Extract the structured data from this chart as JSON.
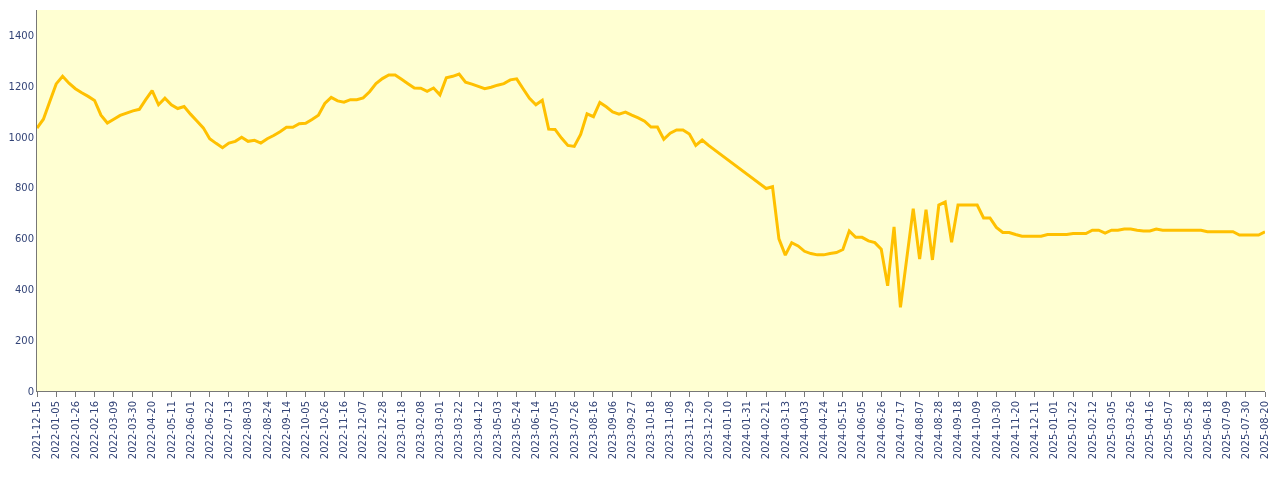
{
  "chart_data": {
    "type": "line",
    "x": [
      "2021-12-15",
      "2021-12-22",
      "2021-12-29",
      "2022-01-05",
      "2022-01-12",
      "2022-01-19",
      "2022-01-26",
      "2022-02-02",
      "2022-02-09",
      "2022-02-16",
      "2022-02-23",
      "2022-03-02",
      "2022-03-09",
      "2022-03-16",
      "2022-03-23",
      "2022-03-30",
      "2022-04-06",
      "2022-04-13",
      "2022-04-20",
      "2022-04-27",
      "2022-05-04",
      "2022-05-11",
      "2022-05-18",
      "2022-05-25",
      "2022-06-01",
      "2022-06-08",
      "2022-06-15",
      "2022-06-22",
      "2022-06-29",
      "2022-07-06",
      "2022-07-13",
      "2022-07-20",
      "2022-07-27",
      "2022-08-03",
      "2022-08-10",
      "2022-08-17",
      "2022-08-24",
      "2022-08-31",
      "2022-09-07",
      "2022-09-14",
      "2022-09-21",
      "2022-09-28",
      "2022-10-05",
      "2022-10-12",
      "2022-10-19",
      "2022-10-26",
      "2022-11-02",
      "2022-11-09",
      "2022-11-16",
      "2022-11-23",
      "2022-11-30",
      "2022-12-07",
      "2022-12-14",
      "2022-12-21",
      "2022-12-28",
      "2023-01-04",
      "2023-01-11",
      "2023-01-18",
      "2023-01-25",
      "2023-02-01",
      "2023-02-08",
      "2023-02-15",
      "2023-02-22",
      "2023-03-01",
      "2023-03-08",
      "2023-03-15",
      "2023-03-22",
      "2023-03-29",
      "2023-04-05",
      "2023-04-12",
      "2023-04-19",
      "2023-04-26",
      "2023-05-03",
      "2023-05-10",
      "2023-05-17",
      "2023-05-24",
      "2023-05-31",
      "2023-06-07",
      "2023-06-14",
      "2023-06-21",
      "2023-06-28",
      "2023-07-05",
      "2023-07-12",
      "2023-07-19",
      "2023-07-26",
      "2023-08-02",
      "2023-08-09",
      "2023-08-16",
      "2023-08-23",
      "2023-08-30",
      "2023-09-06",
      "2023-09-13",
      "2023-09-20",
      "2023-09-27",
      "2023-10-04",
      "2023-10-11",
      "2023-10-18",
      "2023-10-25",
      "2023-11-01",
      "2023-11-08",
      "2023-11-15",
      "2023-11-22",
      "2023-11-29",
      "2023-12-06",
      "2023-12-13",
      "2023-12-20",
      "2024-02-21",
      "2024-02-28",
      "2024-03-06",
      "2024-03-13",
      "2024-03-20",
      "2024-03-27",
      "2024-04-03",
      "2024-04-10",
      "2024-04-17",
      "2024-04-24",
      "2024-05-01",
      "2024-05-08",
      "2024-05-15",
      "2024-05-22",
      "2024-05-29",
      "2024-06-05",
      "2024-06-12",
      "2024-06-19",
      "2024-06-26",
      "2024-07-03",
      "2024-07-10",
      "2024-07-17",
      "2024-07-24",
      "2024-07-31",
      "2024-08-07",
      "2024-08-14",
      "2024-08-21",
      "2024-08-28",
      "2024-09-04",
      "2024-09-11",
      "2024-09-18",
      "2024-09-25",
      "2024-10-02",
      "2024-10-09",
      "2024-10-16",
      "2024-10-23",
      "2024-10-30",
      "2024-11-06",
      "2024-11-13",
      "2024-11-20",
      "2024-11-27",
      "2024-12-04",
      "2024-12-11",
      "2024-12-18",
      "2024-12-25",
      "2025-01-01",
      "2025-01-08",
      "2025-01-15",
      "2025-01-22",
      "2025-01-29",
      "2025-02-05",
      "2025-02-12",
      "2025-02-19",
      "2025-02-26",
      "2025-03-05",
      "2025-03-12",
      "2025-03-19",
      "2025-03-26",
      "2025-04-02",
      "2025-04-09",
      "2025-04-16",
      "2025-04-23",
      "2025-04-30",
      "2025-05-07",
      "2025-05-14",
      "2025-05-21",
      "2025-05-28",
      "2025-06-04",
      "2025-06-11",
      "2025-06-18",
      "2025-06-25",
      "2025-07-02",
      "2025-07-09",
      "2025-07-16",
      "2025-07-23",
      "2025-07-30",
      "2025-08-06",
      "2025-08-13",
      "2025-08-20"
    ],
    "series": [
      {
        "color": "#ffc000",
        "values": [
          1035,
          1070,
          1140,
          1209,
          1239,
          1212,
          1190,
          1174,
          1160,
          1144,
          1086,
          1055,
          1070,
          1085,
          1094,
          1103,
          1109,
          1147,
          1183,
          1127,
          1153,
          1127,
          1112,
          1120,
          1090,
          1063,
          1036,
          993,
          975,
          958,
          976,
          983,
          999,
          983,
          987,
          976,
          993,
          1006,
          1021,
          1038,
          1038,
          1052,
          1054,
          1069,
          1086,
          1132,
          1156,
          1142,
          1137,
          1147,
          1147,
          1154,
          1178,
          1210,
          1230,
          1244,
          1244,
          1227,
          1210,
          1193,
          1192,
          1180,
          1193,
          1166,
          1233,
          1239,
          1248,
          1216,
          1208,
          1199,
          1190,
          1196,
          1204,
          1210,
          1225,
          1229,
          1190,
          1152,
          1127,
          1145,
          1031,
          1030,
          996,
          967,
          963,
          1010,
          1091,
          1080,
          1136,
          1119,
          1099,
          1090,
          1098,
          1086,
          1075,
          1062,
          1039,
          1039,
          991,
          1015,
          1028,
          1028,
          1012,
          967,
          988,
          967,
          797,
          804,
          599,
          535,
          584,
          571,
          550,
          541,
          536,
          536,
          541,
          545,
          557,
          630,
          605,
          605,
          591,
          584,
          558,
          414,
          646,
          329,
          524,
          718,
          519,
          714,
          516,
          732,
          744,
          586,
          732,
          732,
          732,
          732,
          681,
          681,
          644,
          624,
          624,
          616,
          609,
          609,
          609,
          609,
          616,
          616,
          616,
          616,
          620,
          620,
          620,
          633,
          633,
          622,
          633,
          633,
          638,
          638,
          633,
          630,
          630,
          638,
          633,
          633,
          633,
          633,
          633,
          633,
          633,
          627,
          627,
          627,
          627,
          627,
          614,
          614,
          614,
          614,
          627
        ]
      }
    ],
    "xlim": [
      "2021-12-15",
      "2025-08-20"
    ],
    "xticks": [
      "2021-12-15",
      "2022-01-05",
      "2022-01-26",
      "2022-02-16",
      "2022-03-09",
      "2022-03-30",
      "2022-04-20",
      "2022-05-11",
      "2022-06-01",
      "2022-06-22",
      "2022-07-13",
      "2022-08-03",
      "2022-08-24",
      "2022-09-14",
      "2022-10-05",
      "2022-10-26",
      "2022-11-16",
      "2022-12-07",
      "2022-12-28",
      "2023-01-18",
      "2023-02-08",
      "2023-03-01",
      "2023-03-22",
      "2023-04-12",
      "2023-05-03",
      "2023-05-24",
      "2023-06-14",
      "2023-07-05",
      "2023-07-26",
      "2023-08-16",
      "2023-09-06",
      "2023-09-27",
      "2023-10-18",
      "2023-11-08",
      "2023-11-29",
      "2023-12-20",
      "2024-01-10",
      "2024-01-31",
      "2024-02-21",
      "2024-03-13",
      "2024-04-03",
      "2024-04-24",
      "2024-05-15",
      "2024-06-05",
      "2024-06-26",
      "2024-07-17",
      "2024-08-07",
      "2024-08-28",
      "2024-09-18",
      "2024-10-09",
      "2024-10-30",
      "2024-11-20",
      "2024-12-11",
      "2025-01-01",
      "2025-01-22",
      "2025-02-12",
      "2025-03-05",
      "2025-03-26",
      "2025-04-16",
      "2025-05-07",
      "2025-05-28",
      "2025-06-18",
      "2025-07-09",
      "2025-07-30",
      "2025-08-20"
    ],
    "ylim": [
      0,
      1500
    ],
    "yticks": [
      0,
      200,
      400,
      600,
      800,
      1000,
      1200,
      1400
    ]
  }
}
